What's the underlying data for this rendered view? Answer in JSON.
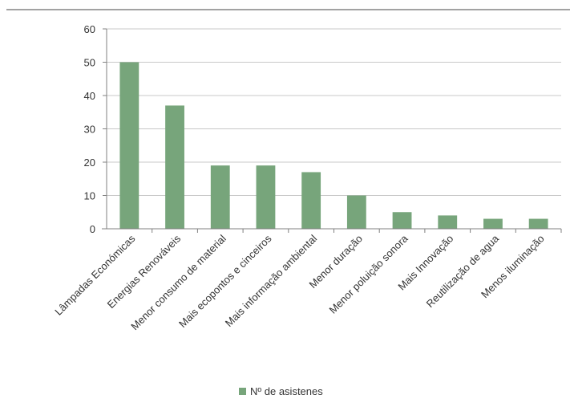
{
  "chart_data": {
    "type": "bar",
    "title": "",
    "xlabel": "",
    "ylabel": "",
    "ylim": [
      0,
      60
    ],
    "yticks": [
      "0",
      "10",
      "20",
      "30",
      "40",
      "50",
      "60"
    ],
    "grid": true,
    "legend_position": "bottom",
    "categories": [
      "Lâmpadas Económicas",
      "Energias Renováveis",
      "Menor consumo de material",
      "Mais ecopontos e cinceiros",
      "Mais informação ambiental",
      "Menor duração",
      "Menor poluição sonora",
      "Mais Innovação",
      "Reutilização de agua",
      "Menos iluminação"
    ],
    "series": [
      {
        "name": "Nº de asistenes",
        "color": "#77a57b",
        "values": [
          50,
          37,
          19,
          19,
          17,
          10,
          5,
          4,
          3,
          3
        ]
      }
    ]
  }
}
